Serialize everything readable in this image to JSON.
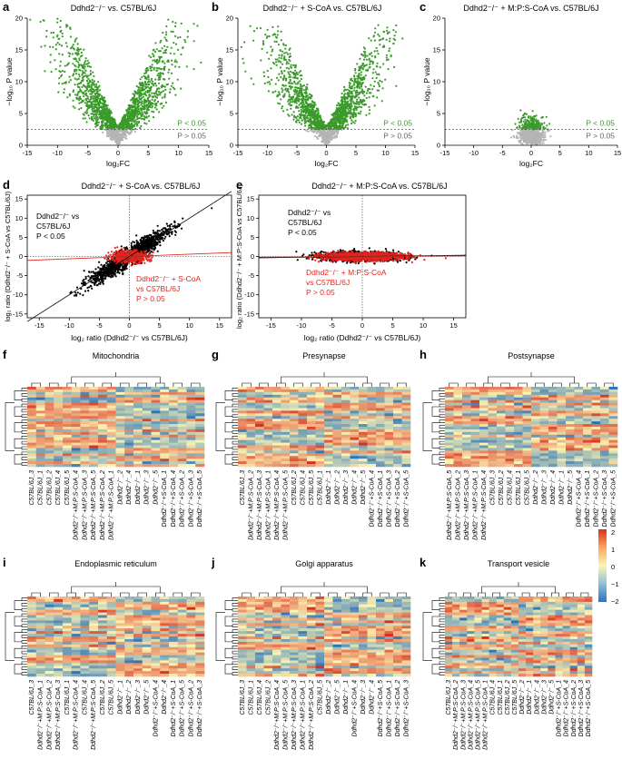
{
  "panels": {
    "a": {
      "letter": "a",
      "title": "Ddhd2⁻/⁻ vs. C57BL/6J"
    },
    "b": {
      "letter": "b",
      "title": "Ddhd2⁻/⁻ + S-CoA vs. C57BL/6J"
    },
    "c": {
      "letter": "c",
      "title": "Ddhd2⁻/⁻ + M:P:S-CoA vs. C57BL/6J"
    },
    "d": {
      "letter": "d",
      "title": "Ddhd2⁻/⁻ + S-CoA vs. C57BL/6J",
      "note_black": [
        "Ddhd2⁻/⁻ vs",
        "C57BL/6J",
        "P < 0.05"
      ],
      "note_red": [
        "Ddhd2⁻/⁻ + S-CoA",
        "vs C57BL/6J",
        "P > 0.05"
      ],
      "ylabel": "log₂ ratio (Ddhd2⁻/⁻ + S-CoA vs C57BL/6J)",
      "xlabel": "log₂ ratio (Ddhd2⁻/⁻ vs C57BL/6J)"
    },
    "e": {
      "letter": "e",
      "title": "Ddhd2⁻/⁻ + M:P:S-CoA vs. C57BL/6J",
      "note_black": [
        "Ddhd2⁻/⁻ vs",
        "C57BL/6J",
        "P < 0.05"
      ],
      "note_red": [
        "Ddhd2⁻/⁻ + M:P:S-CoA",
        "vs C57BL/6J",
        "P > 0.05"
      ],
      "ylabel": "log₂ ratio (Ddhd2⁻/⁻ + M:P:S-CoA vs C57BL/6J)",
      "xlabel": "log₂ ratio (Ddhd2⁻/⁻ vs C57BL/6J)"
    }
  },
  "volcano_axes": {
    "xlabel": "log₂FC",
    "ylabel": "−log₁₀ P value",
    "sig_label": "P < 0.05",
    "nonsig_label": "P > 0.05"
  },
  "heatmaps": {
    "f": {
      "letter": "f",
      "title": "Mitochondria"
    },
    "g": {
      "letter": "g",
      "title": "Presynapse"
    },
    "h": {
      "letter": "h",
      "title": "Postsynapse"
    },
    "i": {
      "letter": "i",
      "title": "Endoplasmic reticulum"
    },
    "j": {
      "letter": "j",
      "title": "Golgi apparatus"
    },
    "k": {
      "letter": "k",
      "title": "Transport vesicle"
    }
  },
  "sample_orders": {
    "f": [
      "C57BL/6J_3",
      "C57BL/6J_1",
      "C57BL/6J_2",
      "C57BL/6J_4",
      "C57BL/6J_5",
      "Ddhd2⁻/⁻+M:P:S-CoA_4",
      "Ddhd2⁻/⁻+M:P:S-CoA_3",
      "Ddhd2⁻/⁻+M:P:S-CoA_5",
      "Ddhd2⁻/⁻+M:P:S-CoA_2",
      "Ddhd2⁻/⁻+M:P:S-CoA_1",
      "Ddhd2⁻/⁻_2",
      "Ddhd2⁻/⁻_4",
      "Ddhd2⁻/⁻_1",
      "Ddhd2⁻/⁻_3",
      "Ddhd2⁻/⁻_5",
      "Ddhd2⁻/⁻+S-CoA_1",
      "Ddhd2⁻/⁻+S-CoA_4",
      "Ddhd2⁻/⁻+S-CoA_2",
      "Ddhd2⁻/⁻+S-CoA_3",
      "Ddhd2⁻/⁻+S-CoA_5"
    ],
    "g": [
      "C57BL/6J_3",
      "Ddhd2⁻/⁻+M:P:S-CoA_2",
      "Ddhd2⁻/⁻+M:P:S-CoA_3",
      "Ddhd2⁻/⁻+M:P:S-CoA_1",
      "Ddhd2⁻/⁻+M:P:S-CoA_4",
      "Ddhd2⁻/⁻+M:P:S-CoA_5",
      "C57BL/6J_2",
      "C57BL/6J_4",
      "C57BL/6J_5",
      "C57BL/6J_1",
      "Ddhd2⁻/⁻_1",
      "Ddhd2⁻/⁻_2",
      "Ddhd2⁻/⁻_3",
      "Ddhd2⁻/⁻_4",
      "Ddhd2⁻/⁻_5",
      "Ddhd2⁻/⁻+S-CoA_4",
      "Ddhd2⁻/⁻+S-CoA_1",
      "Ddhd2⁻/⁻+S-CoA_3",
      "Ddhd2⁻/⁻+S-CoA_2",
      "Ddhd2⁻/⁻+S-CoA_5"
    ],
    "h": [
      "Ddhd2⁻/⁻+M:P:S-CoA_5",
      "Ddhd2⁻/⁻+M:P:S-CoA_2",
      "Ddhd2⁻/⁻+M:P:S-CoA_3",
      "Ddhd2⁻/⁻+M:P:S-CoA_1",
      "Ddhd2⁻/⁻+M:P:S-CoA_4",
      "C57BL/6J_3",
      "C57BL/6J_2",
      "C57BL/6J_4",
      "C57BL/6J_1",
      "C57BL/6J_5",
      "Ddhd2⁻/⁻_2",
      "Ddhd2⁻/⁻_3",
      "Ddhd2⁻/⁻_4",
      "Ddhd2⁻/⁻_1",
      "Ddhd2⁻/⁻_5",
      "Ddhd2⁻/⁻+S-CoA_4",
      "Ddhd2⁻/⁻+S-CoA_1",
      "Ddhd2⁻/⁻+S-CoA_2",
      "Ddhd2⁻/⁻+S-CoA_3",
      "Ddhd2⁻/⁻+S-CoA_5"
    ],
    "i": [
      "C57BL/6J_3",
      "Ddhd2⁻/⁻+M:P:S-CoA_1",
      "Ddhd2⁻/⁻+M:P:S-CoA_2",
      "Ddhd2⁻/⁻+M:P:S-CoA_3",
      "C57BL/6J_1",
      "Ddhd2⁻/⁻+M:P:S-CoA_4",
      "C57BL/6J_4",
      "Ddhd2⁻/⁻+M:P:S-CoA_5",
      "C57BL/6J_2",
      "C57BL/6J_5",
      "Ddhd2⁻/⁻_1",
      "Ddhd2⁻/⁻_2",
      "Ddhd2⁻/⁻_3",
      "Ddhd2⁻/⁻_5",
      "Ddhd2⁻/⁻+S-CoA_4",
      "Ddhd2⁻/⁻_4",
      "Ddhd2⁻/⁻+S-CoA_1",
      "Ddhd2⁻/⁻+S-CoA_5",
      "Ddhd2⁻/⁻+S-CoA_2",
      "Ddhd2⁻/⁻+S-CoA_3"
    ],
    "j": [
      "C57BL/6J_3",
      "C57BL/6J_1",
      "C57BL/6J_4",
      "C57BL/6J_2",
      "Ddhd2⁻/⁻+M:P:S-CoA_4",
      "Ddhd2⁻/⁻+M:P:S-CoA_5",
      "Ddhd2⁻/⁻+M:P:S-CoA_3",
      "Ddhd2⁻/⁻+M:P:S-CoA_1",
      "Ddhd2⁻/⁻+M:P:S-CoA_2",
      "C57BL/6J_5",
      "Ddhd2⁻/⁻_2",
      "Ddhd2⁻/⁻_5",
      "Ddhd2⁻/⁻_1",
      "Ddhd2⁻/⁻+S-CoA_4",
      "Ddhd2⁻/⁻_3",
      "Ddhd2⁻/⁻_4",
      "Ddhd2⁻/⁻+S-CoA_5",
      "Ddhd2⁻/⁻+S-CoA_1",
      "Ddhd2⁻/⁻+S-CoA_2",
      "Ddhd2⁻/⁻+S-CoA_3"
    ],
    "k": [
      "C57BL/6J_3",
      "Ddhd2⁻/⁻+M:P:S-CoA_2",
      "Ddhd2⁻/⁻+M:P:S-CoA_3",
      "Ddhd2⁻/⁻+M:P:S-CoA_4",
      "Ddhd2⁻/⁻+M:P:S-CoA_5",
      "Ddhd2⁻/⁻+M:P:S-CoA_1",
      "C57BL/6J_4",
      "C57BL/6J_1",
      "C57BL/6J_2",
      "C57BL/6J_5",
      "Ddhd2⁻/⁻_2",
      "Ddhd2⁻/⁻_1",
      "Ddhd2⁻/⁻_4",
      "Ddhd2⁻/⁻_3",
      "Ddhd2⁻/⁻_5",
      "Ddhd2⁻/⁻+S-CoA_1",
      "Ddhd2⁻/⁻+S-CoA_4",
      "Ddhd2⁻/⁻+S-CoA_2",
      "Ddhd2⁻/⁻+S-CoA_3",
      "Ddhd2⁻/⁻+S-CoA_5"
    ]
  },
  "colorscale": {
    "ticks": [
      "2",
      "1",
      "0",
      "−1",
      "−2"
    ]
  },
  "colors": {
    "sig": "#3a9a2a",
    "nonsig": "#b4b4b4",
    "scatter_sig": "#000000",
    "scatter_nonsig": "#e3231d",
    "high": "#d7301f",
    "mid": "#fdf5b4",
    "low": "#2c73b8"
  },
  "chart_data": [
    {
      "type": "scatter",
      "panel": "a",
      "title": "Ddhd2⁻/⁻ vs. C57BL/6J",
      "xlim": [
        -15,
        15
      ],
      "ylim": [
        0,
        20
      ],
      "xticks": [
        -15,
        -10,
        -5,
        0,
        5,
        10,
        15
      ],
      "yticks": [
        0,
        5,
        10,
        15,
        20
      ],
      "threshold_y": 2.5,
      "spread_x": 12,
      "max_y": 20
    },
    {
      "type": "scatter",
      "panel": "b",
      "title": "Ddhd2⁻/⁻ + S-CoA vs. C57BL/6J",
      "xlim": [
        -15,
        15
      ],
      "ylim": [
        0,
        20
      ],
      "xticks": [
        -15,
        -10,
        -5,
        0,
        5,
        10,
        15
      ],
      "yticks": [
        0,
        5,
        10,
        15,
        20
      ],
      "threshold_y": 2.5,
      "spread_x": 12,
      "max_y": 19
    },
    {
      "type": "scatter",
      "panel": "c",
      "title": "Ddhd2⁻/⁻ + M:P:S-CoA vs. C57BL/6J",
      "xlim": [
        -15,
        15
      ],
      "ylim": [
        0,
        20
      ],
      "xticks": [
        -15,
        -10,
        -5,
        0,
        5,
        10,
        15
      ],
      "yticks": [
        0,
        5,
        10,
        15,
        20
      ],
      "threshold_y": 2.5,
      "spread_x": 3,
      "max_y": 6
    },
    {
      "type": "scatter",
      "panel": "d",
      "title": "Ddhd2⁻/⁻ + S-CoA vs. C57BL/6J",
      "xlim": [
        -17,
        17
      ],
      "ylim": [
        -16,
        16
      ],
      "xticks": [
        -15,
        -10,
        -5,
        0,
        5,
        10,
        15
      ],
      "yticks": [
        -15,
        -10,
        -5,
        0,
        5,
        10,
        15
      ],
      "fit_sig_slope": 1.0,
      "fit_nonsig_slope": 0.06
    },
    {
      "type": "scatter",
      "panel": "e",
      "title": "Ddhd2⁻/⁻ + M:P:S-CoA vs. C57BL/6J",
      "xlim": [
        -17,
        17
      ],
      "ylim": [
        -16,
        16
      ],
      "xticks": [
        -15,
        -10,
        -5,
        0,
        5,
        10,
        15
      ],
      "yticks": [
        -15,
        -10,
        -5,
        0,
        5,
        10,
        15
      ],
      "fit_sig_slope": 0.02,
      "fit_nonsig_slope": 0.01
    },
    {
      "type": "heatmap",
      "panels": [
        "f",
        "g",
        "h",
        "i",
        "j",
        "k"
      ],
      "samples_per_map": 20,
      "value_range": [
        -2,
        2
      ]
    }
  ]
}
